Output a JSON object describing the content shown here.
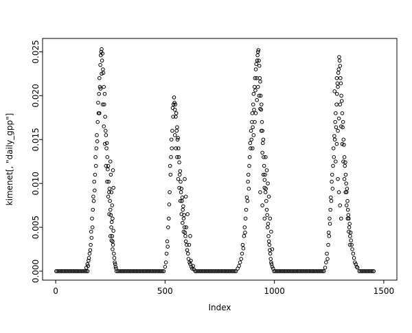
{
  "figure": {
    "background": "#ffffff"
  },
  "chart_data": {
    "type": "scatter",
    "title": "",
    "xlabel": "Index",
    "ylabel": "kimenet[, \"daily_gpp\"]",
    "xlim": [
      0,
      1500
    ],
    "ylim": [
      0,
      0.0255
    ],
    "grid": false,
    "legend": null,
    "marker": {
      "shape": "open-circle",
      "color": "#000000",
      "radius": 2.3
    },
    "xticks": {
      "values": [
        0,
        500,
        1000,
        1500
      ],
      "labels": [
        "0",
        "500",
        "1000",
        "1500"
      ]
    },
    "yticks": {
      "values": [
        0,
        0.005,
        0.01,
        0.015,
        0.02,
        0.025
      ],
      "labels": [
        "0.000",
        "0.005",
        "0.010",
        "0.015",
        "0.020",
        "0.025"
      ]
    },
    "baseline": {
      "y": 0,
      "step": 6,
      "segments": [
        [
          2,
          148
        ],
        [
          278,
          498
        ],
        [
          638,
          828
        ],
        [
          998,
          1228
        ],
        [
          1388,
          1458
        ]
      ]
    },
    "points": [
      [
        140,
        0.0004
      ],
      [
        145,
        0.0008
      ],
      [
        148,
        0.0006
      ],
      [
        150,
        0.0012
      ],
      [
        152,
        0.0015
      ],
      [
        155,
        0.002
      ],
      [
        158,
        0.0024
      ],
      [
        160,
        0.003
      ],
      [
        162,
        0.0045
      ],
      [
        164,
        0.0038
      ],
      [
        166,
        0.006
      ],
      [
        168,
        0.005
      ],
      [
        170,
        0.007
      ],
      [
        172,
        0.0085
      ],
      [
        174,
        0.008
      ],
      [
        176,
        0.0102
      ],
      [
        178,
        0.0092
      ],
      [
        180,
        0.011
      ],
      [
        182,
        0.013
      ],
      [
        184,
        0.012
      ],
      [
        186,
        0.014
      ],
      [
        188,
        0.0155
      ],
      [
        190,
        0.0148
      ],
      [
        192,
        0.017
      ],
      [
        194,
        0.0192
      ],
      [
        196,
        0.018
      ],
      [
        198,
        0.0202
      ],
      [
        200,
        0.022
      ],
      [
        200,
        0.018
      ],
      [
        202,
        0.021
      ],
      [
        204,
        0.0235
      ],
      [
        205,
        0.0208
      ],
      [
        206,
        0.0246
      ],
      [
        208,
        0.025
      ],
      [
        210,
        0.0253
      ],
      [
        210,
        0.0225
      ],
      [
        212,
        0.024
      ],
      [
        214,
        0.0248
      ],
      [
        215,
        0.019
      ],
      [
        216,
        0.023
      ],
      [
        218,
        0.0226
      ],
      [
        220,
        0.021
      ],
      [
        220,
        0.0165
      ],
      [
        222,
        0.019
      ],
      [
        224,
        0.0202
      ],
      [
        225,
        0.0145
      ],
      [
        226,
        0.0176
      ],
      [
        228,
        0.016
      ],
      [
        230,
        0.0155
      ],
      [
        230,
        0.012
      ],
      [
        232,
        0.014
      ],
      [
        234,
        0.0146
      ],
      [
        235,
        0.0102
      ],
      [
        236,
        0.013
      ],
      [
        238,
        0.0116
      ],
      [
        240,
        0.012
      ],
      [
        240,
        0.0085
      ],
      [
        242,
        0.0102
      ],
      [
        244,
        0.009
      ],
      [
        245,
        0.0065
      ],
      [
        246,
        0.0094
      ],
      [
        248,
        0.008
      ],
      [
        250,
        0.007
      ],
      [
        250,
        0.0125
      ],
      [
        250,
        0.004
      ],
      [
        252,
        0.0064
      ],
      [
        252,
        0.011
      ],
      [
        254,
        0.005
      ],
      [
        255,
        0.009
      ],
      [
        255,
        0.0035
      ],
      [
        256,
        0.0056
      ],
      [
        258,
        0.004
      ],
      [
        258,
        0.0075
      ],
      [
        260,
        0.0034
      ],
      [
        260,
        0.006
      ],
      [
        260,
        0.0025
      ],
      [
        262,
        0.003
      ],
      [
        262,
        0.0115
      ],
      [
        264,
        0.0046
      ],
      [
        264,
        0.0095
      ],
      [
        266,
        0.002
      ],
      [
        268,
        0.0015
      ],
      [
        270,
        0.001
      ],
      [
        272,
        0.0008
      ],
      [
        274,
        0.0005
      ],
      [
        276,
        0.0003
      ],
      [
        500,
        0.0005
      ],
      [
        504,
        0.001
      ],
      [
        507,
        0.002
      ],
      [
        510,
        0.0034
      ],
      [
        512,
        0.0028
      ],
      [
        514,
        0.005
      ],
      [
        517,
        0.006
      ],
      [
        519,
        0.0076
      ],
      [
        521,
        0.009
      ],
      [
        523,
        0.012
      ],
      [
        525,
        0.011
      ],
      [
        527,
        0.013
      ],
      [
        529,
        0.015
      ],
      [
        531,
        0.014
      ],
      [
        533,
        0.016
      ],
      [
        535,
        0.0186
      ],
      [
        537,
        0.0176
      ],
      [
        539,
        0.019
      ],
      [
        541,
        0.0198
      ],
      [
        543,
        0.0192
      ],
      [
        545,
        0.0184
      ],
      [
        545,
        0.0155
      ],
      [
        547,
        0.019
      ],
      [
        549,
        0.0176
      ],
      [
        550,
        0.014
      ],
      [
        551,
        0.018
      ],
      [
        553,
        0.016
      ],
      [
        555,
        0.0164
      ],
      [
        555,
        0.013
      ],
      [
        557,
        0.015
      ],
      [
        559,
        0.0152
      ],
      [
        560,
        0.0105
      ],
      [
        561,
        0.014
      ],
      [
        563,
        0.013
      ],
      [
        565,
        0.0124
      ],
      [
        565,
        0.0095
      ],
      [
        567,
        0.011
      ],
      [
        569,
        0.0114
      ],
      [
        570,
        0.008
      ],
      [
        571,
        0.0102
      ],
      [
        573,
        0.009
      ],
      [
        575,
        0.0094
      ],
      [
        575,
        0.0065
      ],
      [
        577,
        0.008
      ],
      [
        579,
        0.0084
      ],
      [
        580,
        0.0055
      ],
      [
        581,
        0.007
      ],
      [
        583,
        0.0074
      ],
      [
        585,
        0.006
      ],
      [
        585,
        0.0045
      ],
      [
        587,
        0.0064
      ],
      [
        589,
        0.005
      ],
      [
        590,
        0.0105
      ],
      [
        591,
        0.0044
      ],
      [
        593,
        0.004
      ],
      [
        595,
        0.0034
      ],
      [
        595,
        0.0085
      ],
      [
        597,
        0.005
      ],
      [
        599,
        0.003
      ],
      [
        601,
        0.0024
      ],
      [
        603,
        0.0065
      ],
      [
        605,
        0.002
      ],
      [
        607,
        0.0014
      ],
      [
        610,
        0.003
      ],
      [
        612,
        0.001
      ],
      [
        615,
        0.0008
      ],
      [
        615,
        0.004
      ],
      [
        618,
        0.0012
      ],
      [
        620,
        0.0005
      ],
      [
        624,
        0.0003
      ],
      [
        628,
        0.0006
      ],
      [
        632,
        0.0002
      ],
      [
        832,
        0.0003
      ],
      [
        838,
        0.0006
      ],
      [
        843,
        0.001
      ],
      [
        848,
        0.0014
      ],
      [
        852,
        0.002
      ],
      [
        855,
        0.003
      ],
      [
        858,
        0.0026
      ],
      [
        861,
        0.004
      ],
      [
        864,
        0.005
      ],
      [
        866,
        0.0044
      ],
      [
        868,
        0.006
      ],
      [
        871,
        0.007
      ],
      [
        874,
        0.0084
      ],
      [
        877,
        0.008
      ],
      [
        879,
        0.0102
      ],
      [
        881,
        0.011
      ],
      [
        883,
        0.0094
      ],
      [
        885,
        0.012
      ],
      [
        887,
        0.013
      ],
      [
        889,
        0.0146
      ],
      [
        891,
        0.014
      ],
      [
        893,
        0.016
      ],
      [
        895,
        0.015
      ],
      [
        897,
        0.017
      ],
      [
        899,
        0.018
      ],
      [
        900,
        0.014
      ],
      [
        901,
        0.0164
      ],
      [
        903,
        0.019
      ],
      [
        905,
        0.0202
      ],
      [
        905,
        0.0155
      ],
      [
        907,
        0.0184
      ],
      [
        909,
        0.021
      ],
      [
        910,
        0.017
      ],
      [
        911,
        0.022
      ],
      [
        913,
        0.0206
      ],
      [
        915,
        0.023
      ],
      [
        915,
        0.018
      ],
      [
        917,
        0.0236
      ],
      [
        919,
        0.022
      ],
      [
        920,
        0.0195
      ],
      [
        921,
        0.024
      ],
      [
        923,
        0.0246
      ],
      [
        925,
        0.025
      ],
      [
        925,
        0.021
      ],
      [
        927,
        0.0252
      ],
      [
        929,
        0.024
      ],
      [
        930,
        0.02
      ],
      [
        931,
        0.0234
      ],
      [
        933,
        0.022
      ],
      [
        935,
        0.0216
      ],
      [
        935,
        0.0185
      ],
      [
        935,
        0.009
      ],
      [
        937,
        0.02
      ],
      [
        939,
        0.0184
      ],
      [
        940,
        0.016
      ],
      [
        941,
        0.019
      ],
      [
        943,
        0.017
      ],
      [
        945,
        0.016
      ],
      [
        945,
        0.0135
      ],
      [
        945,
        0.0075
      ],
      [
        947,
        0.0146
      ],
      [
        949,
        0.015
      ],
      [
        950,
        0.011
      ],
      [
        951,
        0.013
      ],
      [
        953,
        0.012
      ],
      [
        955,
        0.0104
      ],
      [
        955,
        0.0095
      ],
      [
        955,
        0.006
      ],
      [
        957,
        0.011
      ],
      [
        959,
        0.009
      ],
      [
        960,
        0.013
      ],
      [
        961,
        0.0094
      ],
      [
        963,
        0.008
      ],
      [
        965,
        0.007
      ],
      [
        965,
        0.0115
      ],
      [
        967,
        0.0064
      ],
      [
        969,
        0.005
      ],
      [
        970,
        0.01
      ],
      [
        971,
        0.0054
      ],
      [
        973,
        0.004
      ],
      [
        975,
        0.0034
      ],
      [
        975,
        0.0085
      ],
      [
        977,
        0.003
      ],
      [
        979,
        0.0024
      ],
      [
        980,
        0.006
      ],
      [
        981,
        0.002
      ],
      [
        983,
        0.0014
      ],
      [
        985,
        0.001
      ],
      [
        985,
        0.0045
      ],
      [
        987,
        0.0008
      ],
      [
        990,
        0.0005
      ],
      [
        990,
        0.0025
      ],
      [
        994,
        0.0003
      ],
      [
        1232,
        0.0004
      ],
      [
        1236,
        0.001
      ],
      [
        1240,
        0.002
      ],
      [
        1243,
        0.0014
      ],
      [
        1246,
        0.003
      ],
      [
        1248,
        0.0044
      ],
      [
        1250,
        0.004
      ],
      [
        1252,
        0.006
      ],
      [
        1254,
        0.0054
      ],
      [
        1256,
        0.007
      ],
      [
        1258,
        0.0084
      ],
      [
        1260,
        0.008
      ],
      [
        1262,
        0.0102
      ],
      [
        1264,
        0.011
      ],
      [
        1266,
        0.0094
      ],
      [
        1268,
        0.012
      ],
      [
        1270,
        0.014
      ],
      [
        1272,
        0.013
      ],
      [
        1274,
        0.0154
      ],
      [
        1275,
        0.0205
      ],
      [
        1276,
        0.015
      ],
      [
        1278,
        0.017
      ],
      [
        1280,
        0.018
      ],
      [
        1280,
        0.0125
      ],
      [
        1282,
        0.0164
      ],
      [
        1284,
        0.019
      ],
      [
        1285,
        0.0145
      ],
      [
        1285,
        0.022
      ],
      [
        1286,
        0.0202
      ],
      [
        1288,
        0.0214
      ],
      [
        1290,
        0.021
      ],
      [
        1290,
        0.016
      ],
      [
        1290,
        0.0105
      ],
      [
        1292,
        0.0226
      ],
      [
        1294,
        0.023
      ],
      [
        1295,
        0.0174
      ],
      [
        1295,
        0.009
      ],
      [
        1296,
        0.0244
      ],
      [
        1298,
        0.024
      ],
      [
        1300,
        0.0234
      ],
      [
        1300,
        0.019
      ],
      [
        1300,
        0.0075
      ],
      [
        1302,
        0.022
      ],
      [
        1304,
        0.0214
      ],
      [
        1305,
        0.0165
      ],
      [
        1305,
        0.006
      ],
      [
        1306,
        0.02
      ],
      [
        1308,
        0.0194
      ],
      [
        1310,
        0.018
      ],
      [
        1310,
        0.0145
      ],
      [
        1312,
        0.0164
      ],
      [
        1314,
        0.017
      ],
      [
        1315,
        0.0125
      ],
      [
        1316,
        0.015
      ],
      [
        1318,
        0.0144
      ],
      [
        1320,
        0.013
      ],
      [
        1320,
        0.0105
      ],
      [
        1322,
        0.012
      ],
      [
        1324,
        0.0124
      ],
      [
        1325,
        0.009
      ],
      [
        1326,
        0.011
      ],
      [
        1328,
        0.01
      ],
      [
        1330,
        0.009
      ],
      [
        1330,
        0.0075
      ],
      [
        1332,
        0.0094
      ],
      [
        1334,
        0.008
      ],
      [
        1335,
        0.006
      ],
      [
        1336,
        0.007
      ],
      [
        1338,
        0.0064
      ],
      [
        1340,
        0.006
      ],
      [
        1340,
        0.0045
      ],
      [
        1342,
        0.005
      ],
      [
        1344,
        0.0054
      ],
      [
        1345,
        0.003
      ],
      [
        1346,
        0.004
      ],
      [
        1348,
        0.0044
      ],
      [
        1350,
        0.0035
      ],
      [
        1353,
        0.003
      ],
      [
        1356,
        0.0025
      ],
      [
        1360,
        0.002
      ],
      [
        1364,
        0.0015
      ],
      [
        1368,
        0.001
      ],
      [
        1372,
        0.0008
      ],
      [
        1376,
        0.0005
      ],
      [
        1380,
        0.0004
      ]
    ]
  }
}
